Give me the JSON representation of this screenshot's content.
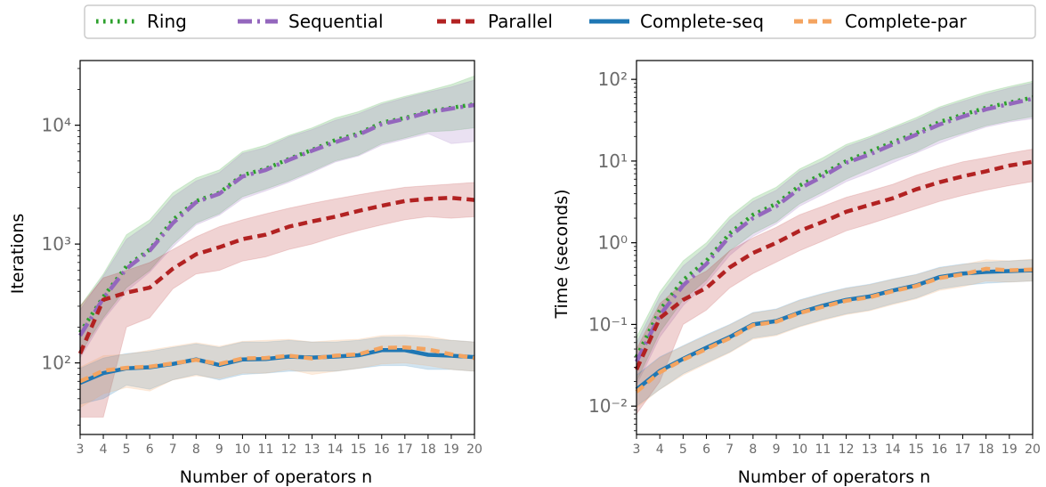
{
  "legend": {
    "placement": "top-center",
    "entries": [
      {
        "label": "Ring",
        "color": "#2ca02c",
        "style": "dotted"
      },
      {
        "label": "Sequential",
        "color": "#9467bd",
        "style": "dashdot"
      },
      {
        "label": "Parallel",
        "color": "#b22222",
        "style": "dashed"
      },
      {
        "label": "Complete-seq",
        "color": "#1f77b4",
        "style": "solid"
      },
      {
        "label": "Complete-par",
        "color": "#f4a460",
        "style": "dashed"
      }
    ]
  },
  "chart_data": [
    {
      "type": "line",
      "yscale": "log",
      "xlabel": "Number of operators n",
      "ylabel": "Iterations",
      "x": [
        3,
        4,
        5,
        6,
        7,
        8,
        9,
        10,
        11,
        12,
        13,
        14,
        15,
        16,
        17,
        18,
        19,
        20
      ],
      "xlim": [
        3,
        20
      ],
      "ylim": [
        25,
        35000
      ],
      "yticks": [
        {
          "value": 100,
          "label": "10^2"
        },
        {
          "value": 1000,
          "label": "10^3"
        },
        {
          "value": 10000,
          "label": "10^4"
        }
      ],
      "grid": false,
      "series": [
        {
          "name": "Ring",
          "values": [
            180,
            360,
            650,
            900,
            1600,
            2300,
            2700,
            3800,
            4300,
            5200,
            6200,
            7500,
            8500,
            10500,
            11500,
            13000,
            14000,
            15000
          ],
          "lower": [
            120,
            240,
            430,
            600,
            1000,
            1500,
            1800,
            2500,
            2900,
            3400,
            4100,
            5000,
            5600,
            7000,
            7800,
            8800,
            9000,
            9500
          ],
          "upper": [
            300,
            560,
            1200,
            1600,
            2700,
            3600,
            4200,
            6000,
            6800,
            8200,
            9500,
            11500,
            13000,
            15500,
            17500,
            19500,
            22000,
            26000
          ]
        },
        {
          "name": "Sequential",
          "values": [
            170,
            350,
            620,
            880,
            1500,
            2250,
            2650,
            3700,
            4200,
            5100,
            6100,
            7200,
            8300,
            10200,
            11300,
            12800,
            13800,
            14800
          ],
          "lower": [
            110,
            230,
            400,
            580,
            950,
            1450,
            1750,
            2400,
            2800,
            3300,
            4000,
            4900,
            5500,
            6800,
            7600,
            8500,
            7000,
            7300
          ],
          "upper": [
            280,
            540,
            1100,
            1500,
            2500,
            3400,
            4000,
            5800,
            6500,
            8000,
            9200,
            11000,
            12500,
            15000,
            17000,
            19000,
            21000,
            24000
          ]
        },
        {
          "name": "Parallel",
          "values": [
            120,
            340,
            390,
            430,
            620,
            820,
            940,
            1100,
            1200,
            1400,
            1550,
            1700,
            1900,
            2100,
            2300,
            2400,
            2450,
            2350
          ],
          "lower": [
            35,
            35,
            200,
            240,
            420,
            560,
            600,
            720,
            780,
            900,
            1000,
            1150,
            1300,
            1450,
            1600,
            1700,
            1650,
            1700
          ],
          "upper": [
            300,
            520,
            600,
            700,
            900,
            1150,
            1400,
            1600,
            1800,
            2000,
            2200,
            2400,
            2600,
            2800,
            3000,
            3100,
            3200,
            3300
          ]
        },
        {
          "name": "Complete-seq",
          "values": [
            68,
            82,
            90,
            92,
            98,
            107,
            96,
            107,
            108,
            113,
            111,
            113,
            116,
            128,
            128,
            117,
            115,
            112
          ],
          "lower": [
            45,
            50,
            65,
            60,
            72,
            80,
            72,
            80,
            82,
            85,
            85,
            85,
            90,
            95,
            95,
            88,
            88,
            85
          ],
          "upper": [
            90,
            110,
            120,
            125,
            135,
            145,
            135,
            150,
            150,
            155,
            150,
            150,
            155,
            165,
            165,
            160,
            155,
            150
          ]
        },
        {
          "name": "Complete-par",
          "values": [
            70,
            86,
            91,
            93,
            99,
            106,
            98,
            109,
            110,
            115,
            109,
            115,
            118,
            134,
            135,
            130,
            118,
            110
          ],
          "lower": [
            42,
            55,
            62,
            58,
            72,
            78,
            74,
            82,
            82,
            88,
            80,
            85,
            90,
            98,
            100,
            95,
            88,
            85
          ],
          "upper": [
            92,
            115,
            118,
            128,
            138,
            148,
            138,
            152,
            155,
            158,
            150,
            155,
            158,
            170,
            172,
            168,
            155,
            150
          ]
        }
      ]
    },
    {
      "type": "line",
      "yscale": "log",
      "xlabel": "Number of operators n",
      "ylabel": "Time (seconds)",
      "x": [
        3,
        4,
        5,
        6,
        7,
        8,
        9,
        10,
        11,
        12,
        13,
        14,
        15,
        16,
        17,
        18,
        19,
        20
      ],
      "xlim": [
        3,
        20
      ],
      "ylim": [
        0.0045,
        170
      ],
      "yticks": [
        {
          "value": 0.01,
          "label": "10^-2"
        },
        {
          "value": 0.1,
          "label": "10^-1"
        },
        {
          "value": 1,
          "label": "10^0"
        },
        {
          "value": 10,
          "label": "10^1"
        },
        {
          "value": 100,
          "label": "10^2"
        }
      ],
      "grid": false,
      "series": [
        {
          "name": "Ring",
          "values": [
            0.04,
            0.15,
            0.35,
            0.6,
            1.3,
            2.2,
            3.0,
            5.0,
            7.0,
            10,
            13,
            17,
            22,
            30,
            37,
            45,
            52,
            60
          ],
          "lower": [
            0.02,
            0.08,
            0.2,
            0.35,
            0.8,
            1.3,
            1.8,
            3.0,
            4.2,
            6.0,
            8.0,
            10.5,
            13,
            18,
            22,
            27,
            31,
            35
          ],
          "upper": [
            0.07,
            0.25,
            0.6,
            1.0,
            2.1,
            3.5,
            4.8,
            8.0,
            11,
            16,
            20,
            26,
            34,
            46,
            57,
            70,
            82,
            95
          ]
        },
        {
          "name": "Sequential",
          "values": [
            0.035,
            0.13,
            0.3,
            0.55,
            1.2,
            2.0,
            2.8,
            4.6,
            6.5,
            9.5,
            12,
            16,
            21,
            28,
            35,
            43,
            50,
            58
          ],
          "lower": [
            0.018,
            0.07,
            0.17,
            0.32,
            0.7,
            1.2,
            1.7,
            2.8,
            3.9,
            5.6,
            7.2,
            9.5,
            12.5,
            16.5,
            21,
            26,
            30,
            33
          ],
          "upper": [
            0.06,
            0.22,
            0.52,
            0.9,
            1.9,
            3.2,
            4.4,
            7.5,
            10,
            15,
            19,
            25,
            32,
            44,
            54,
            66,
            78,
            90
          ]
        },
        {
          "name": "Parallel",
          "values": [
            0.028,
            0.12,
            0.2,
            0.28,
            0.5,
            0.75,
            1.0,
            1.4,
            1.8,
            2.4,
            2.9,
            3.5,
            4.5,
            5.5,
            6.5,
            7.5,
            8.8,
            9.8
          ],
          "lower": [
            0.008,
            0.02,
            0.1,
            0.15,
            0.28,
            0.42,
            0.58,
            0.8,
            1.05,
            1.4,
            1.7,
            2.1,
            2.6,
            3.2,
            3.8,
            4.4,
            5.0,
            5.6
          ],
          "upper": [
            0.05,
            0.18,
            0.32,
            0.45,
            0.8,
            1.15,
            1.55,
            2.2,
            2.8,
            3.6,
            4.3,
            5.2,
            6.7,
            8.2,
            9.8,
            11,
            12.5,
            14
          ]
        },
        {
          "name": "Complete-seq",
          "values": [
            0.016,
            0.027,
            0.038,
            0.052,
            0.07,
            0.1,
            0.11,
            0.14,
            0.17,
            0.2,
            0.22,
            0.26,
            0.3,
            0.38,
            0.42,
            0.44,
            0.45,
            0.46
          ],
          "lower": [
            0.01,
            0.016,
            0.025,
            0.034,
            0.046,
            0.068,
            0.075,
            0.095,
            0.115,
            0.135,
            0.15,
            0.18,
            0.21,
            0.27,
            0.3,
            0.32,
            0.33,
            0.34
          ],
          "upper": [
            0.024,
            0.04,
            0.055,
            0.075,
            0.1,
            0.14,
            0.155,
            0.2,
            0.24,
            0.28,
            0.31,
            0.36,
            0.41,
            0.5,
            0.55,
            0.58,
            0.6,
            0.62
          ]
        },
        {
          "name": "Complete-par",
          "values": [
            0.015,
            0.026,
            0.037,
            0.05,
            0.068,
            0.098,
            0.108,
            0.138,
            0.165,
            0.195,
            0.215,
            0.255,
            0.295,
            0.37,
            0.41,
            0.48,
            0.46,
            0.47
          ],
          "lower": [
            0.0095,
            0.016,
            0.024,
            0.033,
            0.045,
            0.066,
            0.073,
            0.093,
            0.112,
            0.132,
            0.147,
            0.175,
            0.205,
            0.26,
            0.29,
            0.34,
            0.33,
            0.34
          ],
          "upper": [
            0.023,
            0.039,
            0.054,
            0.073,
            0.098,
            0.138,
            0.152,
            0.196,
            0.235,
            0.275,
            0.305,
            0.355,
            0.405,
            0.49,
            0.54,
            0.62,
            0.6,
            0.63
          ]
        }
      ]
    }
  ]
}
